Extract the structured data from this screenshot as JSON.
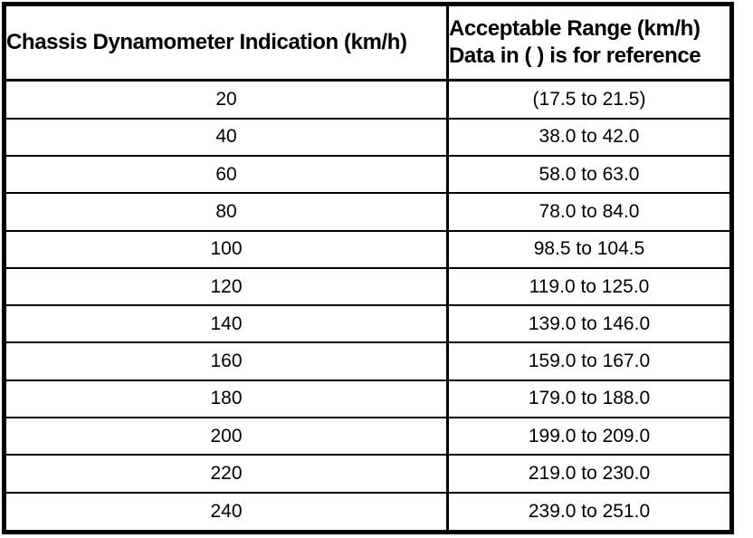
{
  "table": {
    "headers": {
      "indication": "Chassis Dynamometer Indication (km/h)",
      "range_line1": "Acceptable Range (km/h)",
      "range_line2": "Data in ( ) is for reference"
    },
    "rows": [
      {
        "indication": "20",
        "range": "(17.5 to 21.5)"
      },
      {
        "indication": "40",
        "range": "38.0 to 42.0"
      },
      {
        "indication": "60",
        "range": "58.0 to 63.0"
      },
      {
        "indication": "80",
        "range": "78.0 to 84.0"
      },
      {
        "indication": "100",
        "range": "98.5 to 104.5"
      },
      {
        "indication": "120",
        "range": "119.0 to 125.0"
      },
      {
        "indication": "140",
        "range": "139.0 to 146.0"
      },
      {
        "indication": "160",
        "range": "159.0 to 167.0"
      },
      {
        "indication": "180",
        "range": "179.0 to 188.0"
      },
      {
        "indication": "200",
        "range": "199.0 to 209.0"
      },
      {
        "indication": "220",
        "range": "219.0 to 230.0"
      },
      {
        "indication": "240",
        "range": "239.0 to 251.0"
      }
    ]
  },
  "colors": {
    "border": "#000000",
    "background": "#ffffff",
    "text": "#000000"
  }
}
